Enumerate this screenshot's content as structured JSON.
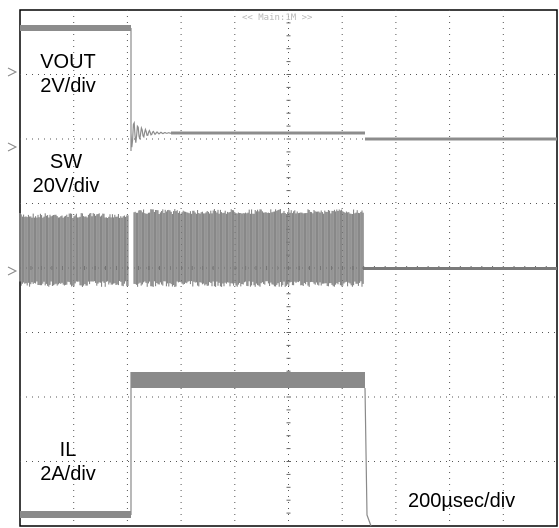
{
  "chart_data": {
    "type": "line",
    "title": "",
    "mode_label": "<< Main:1M >>",
    "timebase": "200µsec/div",
    "x_unit": "div",
    "xlim": [
      0,
      10
    ],
    "ylim_divisions": 8,
    "grid": true,
    "channels": [
      {
        "name": "VOUT",
        "scale": "2V/div",
        "color": "#8c8c8c",
        "events": "output high until ~1.3 div, falls with ringing, settles near mid-screen, small step at ~4.2 div"
      },
      {
        "name": "SW",
        "scale": "20V/div",
        "color": "#7a7a7a",
        "events": "switching band until ~4.2 div with brief gap near 1.3 div, then flat"
      },
      {
        "name": "IL",
        "scale": "2A/div",
        "color": "#8a8a8a",
        "events": "low until ~1.3 div, steps up to ~3 div level, drops below screen at ~4.2 div"
      }
    ]
  }
}
